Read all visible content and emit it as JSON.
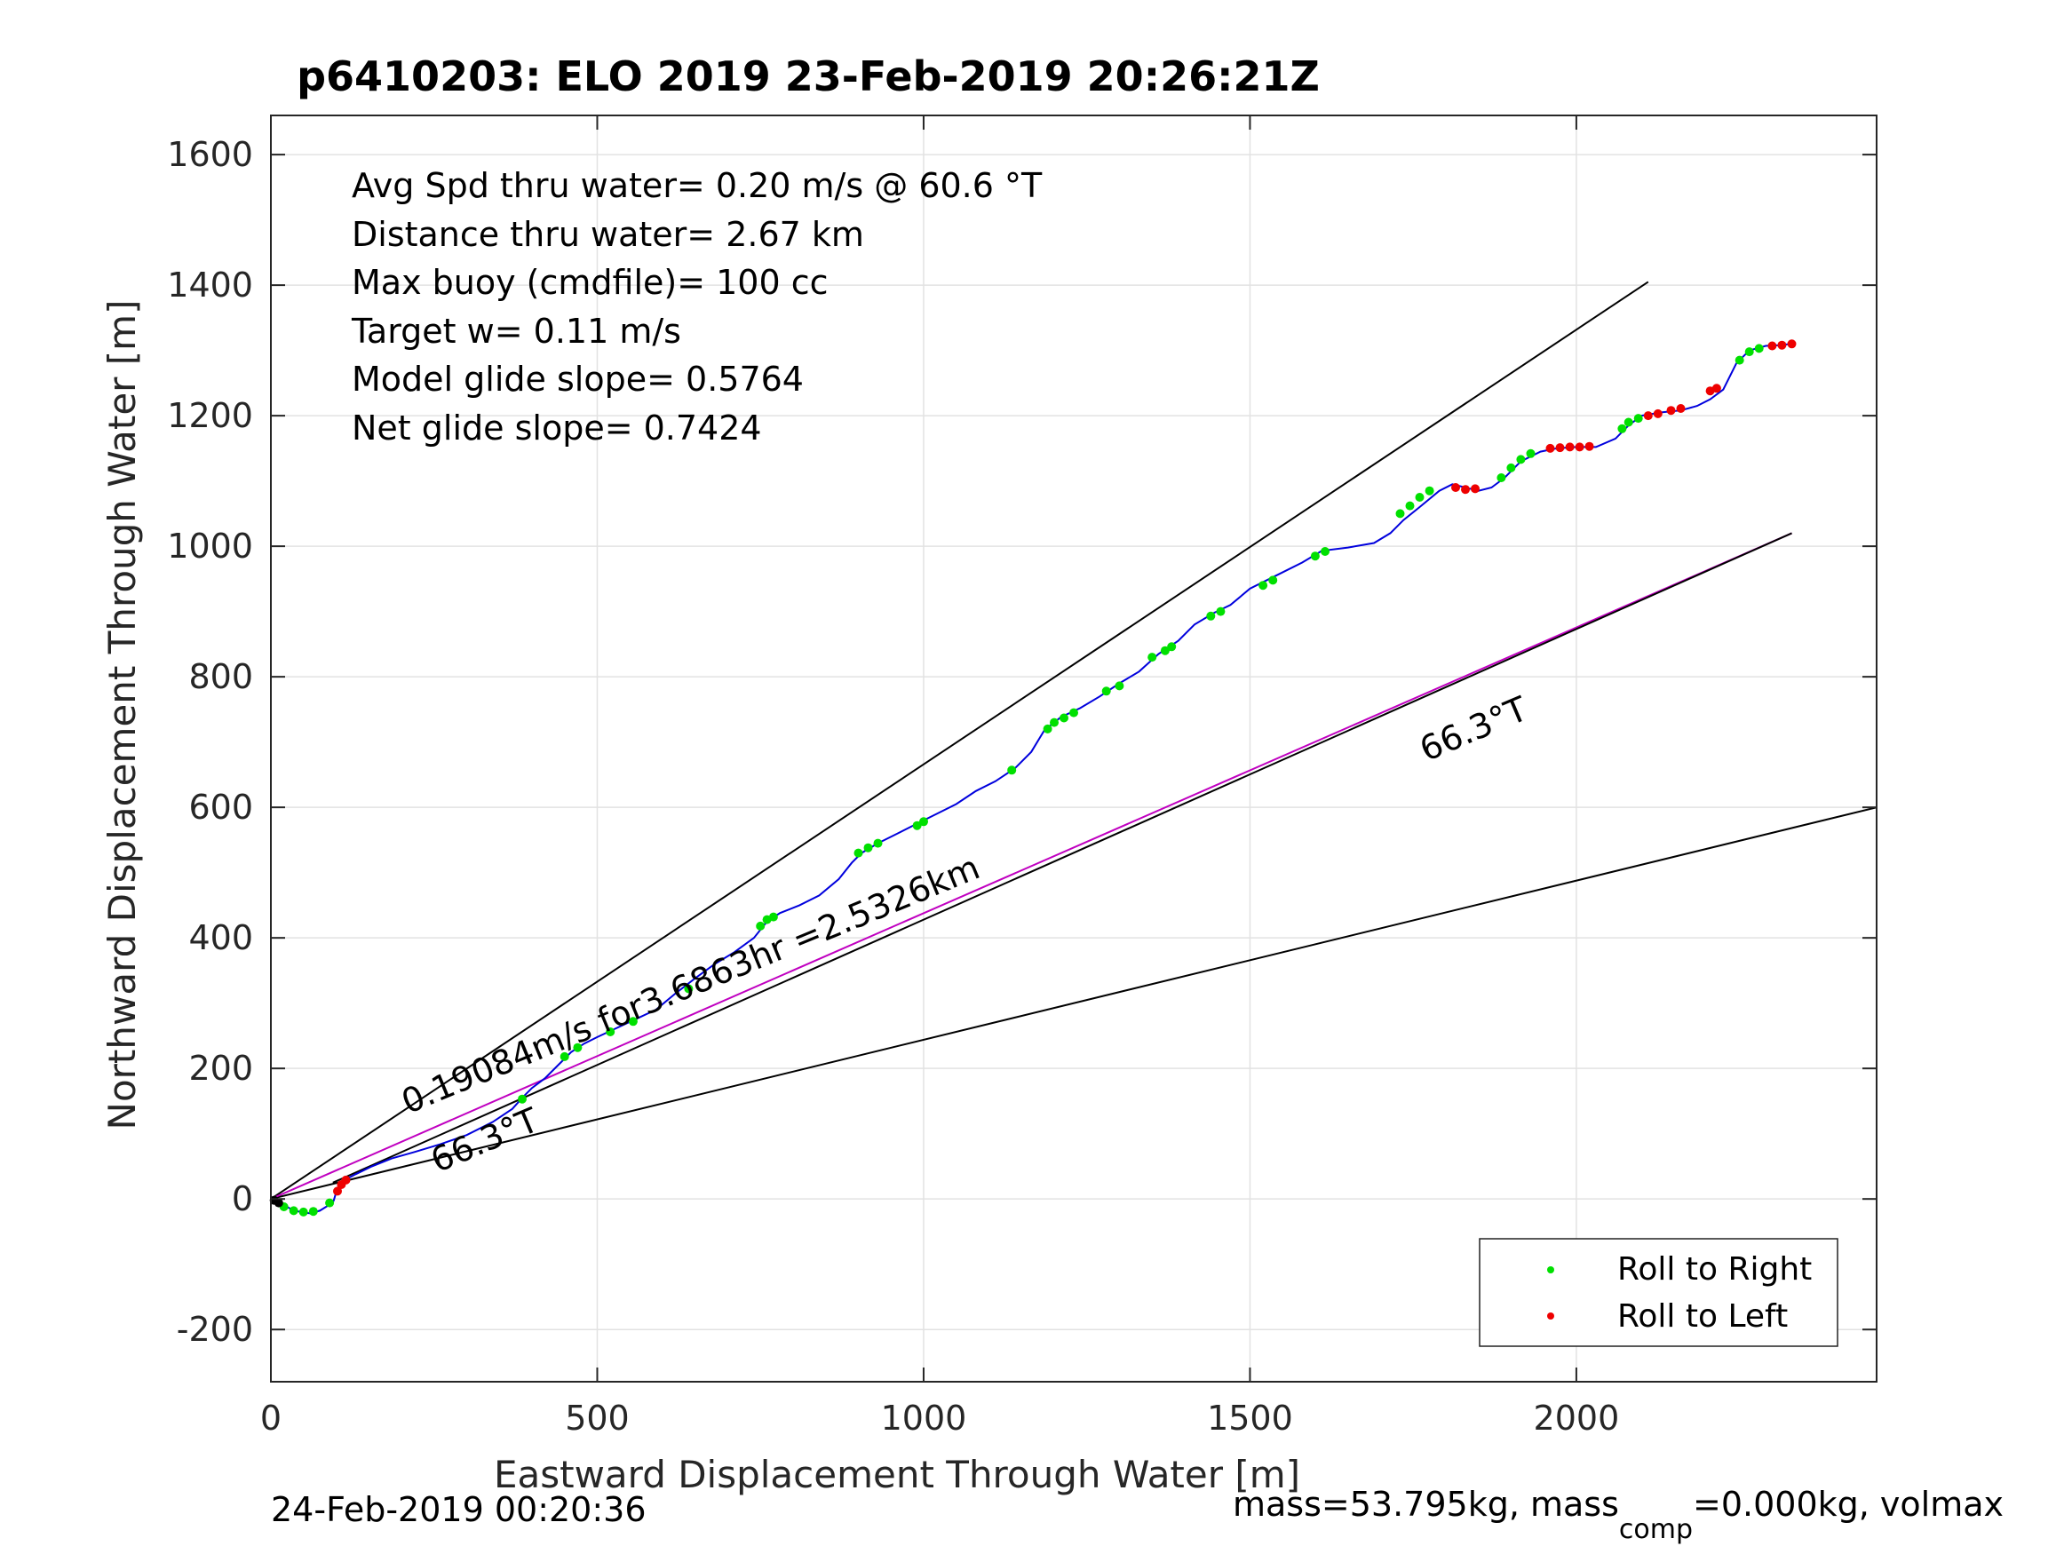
{
  "chart_data": {
    "type": "scatter",
    "title": "p6410203: ELO 2019 23-Feb-2019 20:26:21Z",
    "xlabel": "Eastward Displacement Through Water [m]",
    "ylabel": "Northward Displacement Through Water [m]",
    "xlim": [
      0,
      2460
    ],
    "ylim": [
      -280,
      1660
    ],
    "xticks": [
      0,
      500,
      1000,
      1500,
      2000
    ],
    "xtick_labels": [
      "0",
      "500",
      "1000",
      "1500",
      "2000"
    ],
    "yticks": [
      -200,
      0,
      200,
      400,
      600,
      800,
      1000,
      1200,
      1400,
      1600
    ],
    "ytick_labels": [
      "-200",
      "0",
      "200",
      "400",
      "600",
      "800",
      "1000",
      "1200",
      "1400",
      "1600"
    ],
    "grid": true,
    "stats_text": [
      "Avg Spd thru water=  0.20 m/s @  60.6 °T",
      "Distance thru water=  2.67 km",
      "Max buoy (cmdfile)= 100 cc",
      "Target w= 0.11 m/s",
      "Model glide slope= 0.5764",
      "Net glide slope= 0.7424"
    ],
    "annotations": [
      {
        "text": "0.19084m/s for3.6863hr =2.5326km",
        "x": 210,
        "y": 130,
        "angle_deg": 22.5
      },
      {
        "text": "66.3°T",
        "x": 255,
        "y": 40,
        "angle_deg": 23
      },
      {
        "text": "66.3°T",
        "x": 1770,
        "y": 670,
        "angle_deg": 23
      }
    ],
    "reference_lines": [
      {
        "color": "#000000",
        "points": [
          [
            0,
            0
          ],
          [
            2110,
            1405
          ]
        ]
      },
      {
        "color": "#000000",
        "points": [
          [
            0,
            0
          ],
          [
            2460,
            600
          ]
        ]
      },
      {
        "color": "#c000c0",
        "points": [
          [
            0,
            0
          ],
          [
            2330,
            1020
          ]
        ]
      },
      {
        "color": "#000000",
        "points": [
          [
            95,
            25
          ],
          [
            2330,
            1020
          ]
        ]
      }
    ],
    "track": {
      "color": "#0000dd",
      "points": [
        [
          0,
          0
        ],
        [
          15,
          -6
        ],
        [
          30,
          -15
        ],
        [
          45,
          -20
        ],
        [
          60,
          -22
        ],
        [
          75,
          -18
        ],
        [
          88,
          -10
        ],
        [
          96,
          -3
        ],
        [
          100,
          10
        ],
        [
          106,
          22
        ],
        [
          115,
          30
        ],
        [
          130,
          38
        ],
        [
          155,
          50
        ],
        [
          185,
          62
        ],
        [
          220,
          72
        ],
        [
          260,
          84
        ],
        [
          300,
          98
        ],
        [
          340,
          118
        ],
        [
          370,
          138
        ],
        [
          385,
          155
        ],
        [
          400,
          170
        ],
        [
          420,
          185
        ],
        [
          440,
          205
        ],
        [
          460,
          225
        ],
        [
          480,
          238
        ],
        [
          500,
          248
        ],
        [
          530,
          262
        ],
        [
          560,
          276
        ],
        [
          590,
          290
        ],
        [
          620,
          315
        ],
        [
          650,
          338
        ],
        [
          680,
          360
        ],
        [
          710,
          378
        ],
        [
          740,
          400
        ],
        [
          760,
          425
        ],
        [
          780,
          438
        ],
        [
          810,
          450
        ],
        [
          840,
          465
        ],
        [
          870,
          490
        ],
        [
          890,
          515
        ],
        [
          905,
          530
        ],
        [
          930,
          545
        ],
        [
          960,
          560
        ],
        [
          990,
          575
        ],
        [
          1020,
          590
        ],
        [
          1050,
          605
        ],
        [
          1080,
          625
        ],
        [
          1110,
          640
        ],
        [
          1140,
          660
        ],
        [
          1165,
          685
        ],
        [
          1185,
          718
        ],
        [
          1210,
          738
        ],
        [
          1240,
          752
        ],
        [
          1270,
          770
        ],
        [
          1300,
          790
        ],
        [
          1330,
          808
        ],
        [
          1360,
          835
        ],
        [
          1390,
          855
        ],
        [
          1415,
          880
        ],
        [
          1445,
          898
        ],
        [
          1470,
          910
        ],
        [
          1500,
          935
        ],
        [
          1540,
          955
        ],
        [
          1580,
          975
        ],
        [
          1610,
          993
        ],
        [
          1650,
          998
        ],
        [
          1690,
          1005
        ],
        [
          1715,
          1020
        ],
        [
          1735,
          1040
        ],
        [
          1760,
          1060
        ],
        [
          1790,
          1085
        ],
        [
          1810,
          1095
        ],
        [
          1830,
          1090
        ],
        [
          1850,
          1085
        ],
        [
          1870,
          1090
        ],
        [
          1890,
          1105
        ],
        [
          1915,
          1130
        ],
        [
          1945,
          1145
        ],
        [
          1970,
          1150
        ],
        [
          2000,
          1152
        ],
        [
          2030,
          1152
        ],
        [
          2060,
          1165
        ],
        [
          2080,
          1185
        ],
        [
          2100,
          1200
        ],
        [
          2130,
          1205
        ],
        [
          2160,
          1208
        ],
        [
          2185,
          1215
        ],
        [
          2205,
          1225
        ],
        [
          2225,
          1240
        ],
        [
          2245,
          1280
        ],
        [
          2265,
          1300
        ],
        [
          2290,
          1307
        ],
        [
          2310,
          1308
        ],
        [
          2330,
          1310
        ]
      ]
    },
    "series": [
      {
        "name": "Roll to Right",
        "color": "#00e000",
        "x": [
          20,
          35,
          50,
          65,
          90,
          385,
          450,
          470,
          520,
          555,
          640,
          750,
          760,
          770,
          900,
          915,
          930,
          990,
          1000,
          1135,
          1190,
          1200,
          1215,
          1230,
          1280,
          1300,
          1350,
          1370,
          1380,
          1440,
          1455,
          1520,
          1535,
          1600,
          1615,
          1730,
          1745,
          1760,
          1775,
          1885,
          1900,
          1915,
          1930,
          2070,
          2080,
          2095,
          2250,
          2265,
          2280
        ],
        "values": [
          -12,
          -18,
          -20,
          -19,
          -6,
          153,
          218,
          232,
          256,
          272,
          322,
          418,
          428,
          432,
          530,
          538,
          545,
          572,
          578,
          657,
          720,
          730,
          737,
          745,
          778,
          786,
          830,
          840,
          846,
          893,
          900,
          940,
          948,
          985,
          992,
          1050,
          1062,
          1075,
          1085,
          1105,
          1120,
          1133,
          1142,
          1180,
          1190,
          1196,
          1285,
          1298,
          1303
        ]
      },
      {
        "name": "Roll to Left",
        "color": "#ee0000",
        "x": [
          102,
          108,
          115,
          1815,
          1830,
          1845,
          1960,
          1975,
          1990,
          2005,
          2020,
          2110,
          2125,
          2145,
          2160,
          2205,
          2215,
          2300,
          2315,
          2330
        ],
        "values": [
          12,
          22,
          29,
          1090,
          1087,
          1088,
          1150,
          1151,
          1152,
          1152,
          1153,
          1200,
          1203,
          1208,
          1211,
          1238,
          1242,
          1307,
          1308,
          1310
        ]
      }
    ],
    "legend": {
      "position": "bottom-right",
      "entries": [
        "Roll to Right",
        "Roll to Left"
      ]
    },
    "footer_left": "24-Feb-2019 00:20:36",
    "footer_right": "mass=53.795kg, mass",
    "footer_right_sub": "comp",
    "footer_right_tail": "=0.000kg, volmax"
  }
}
